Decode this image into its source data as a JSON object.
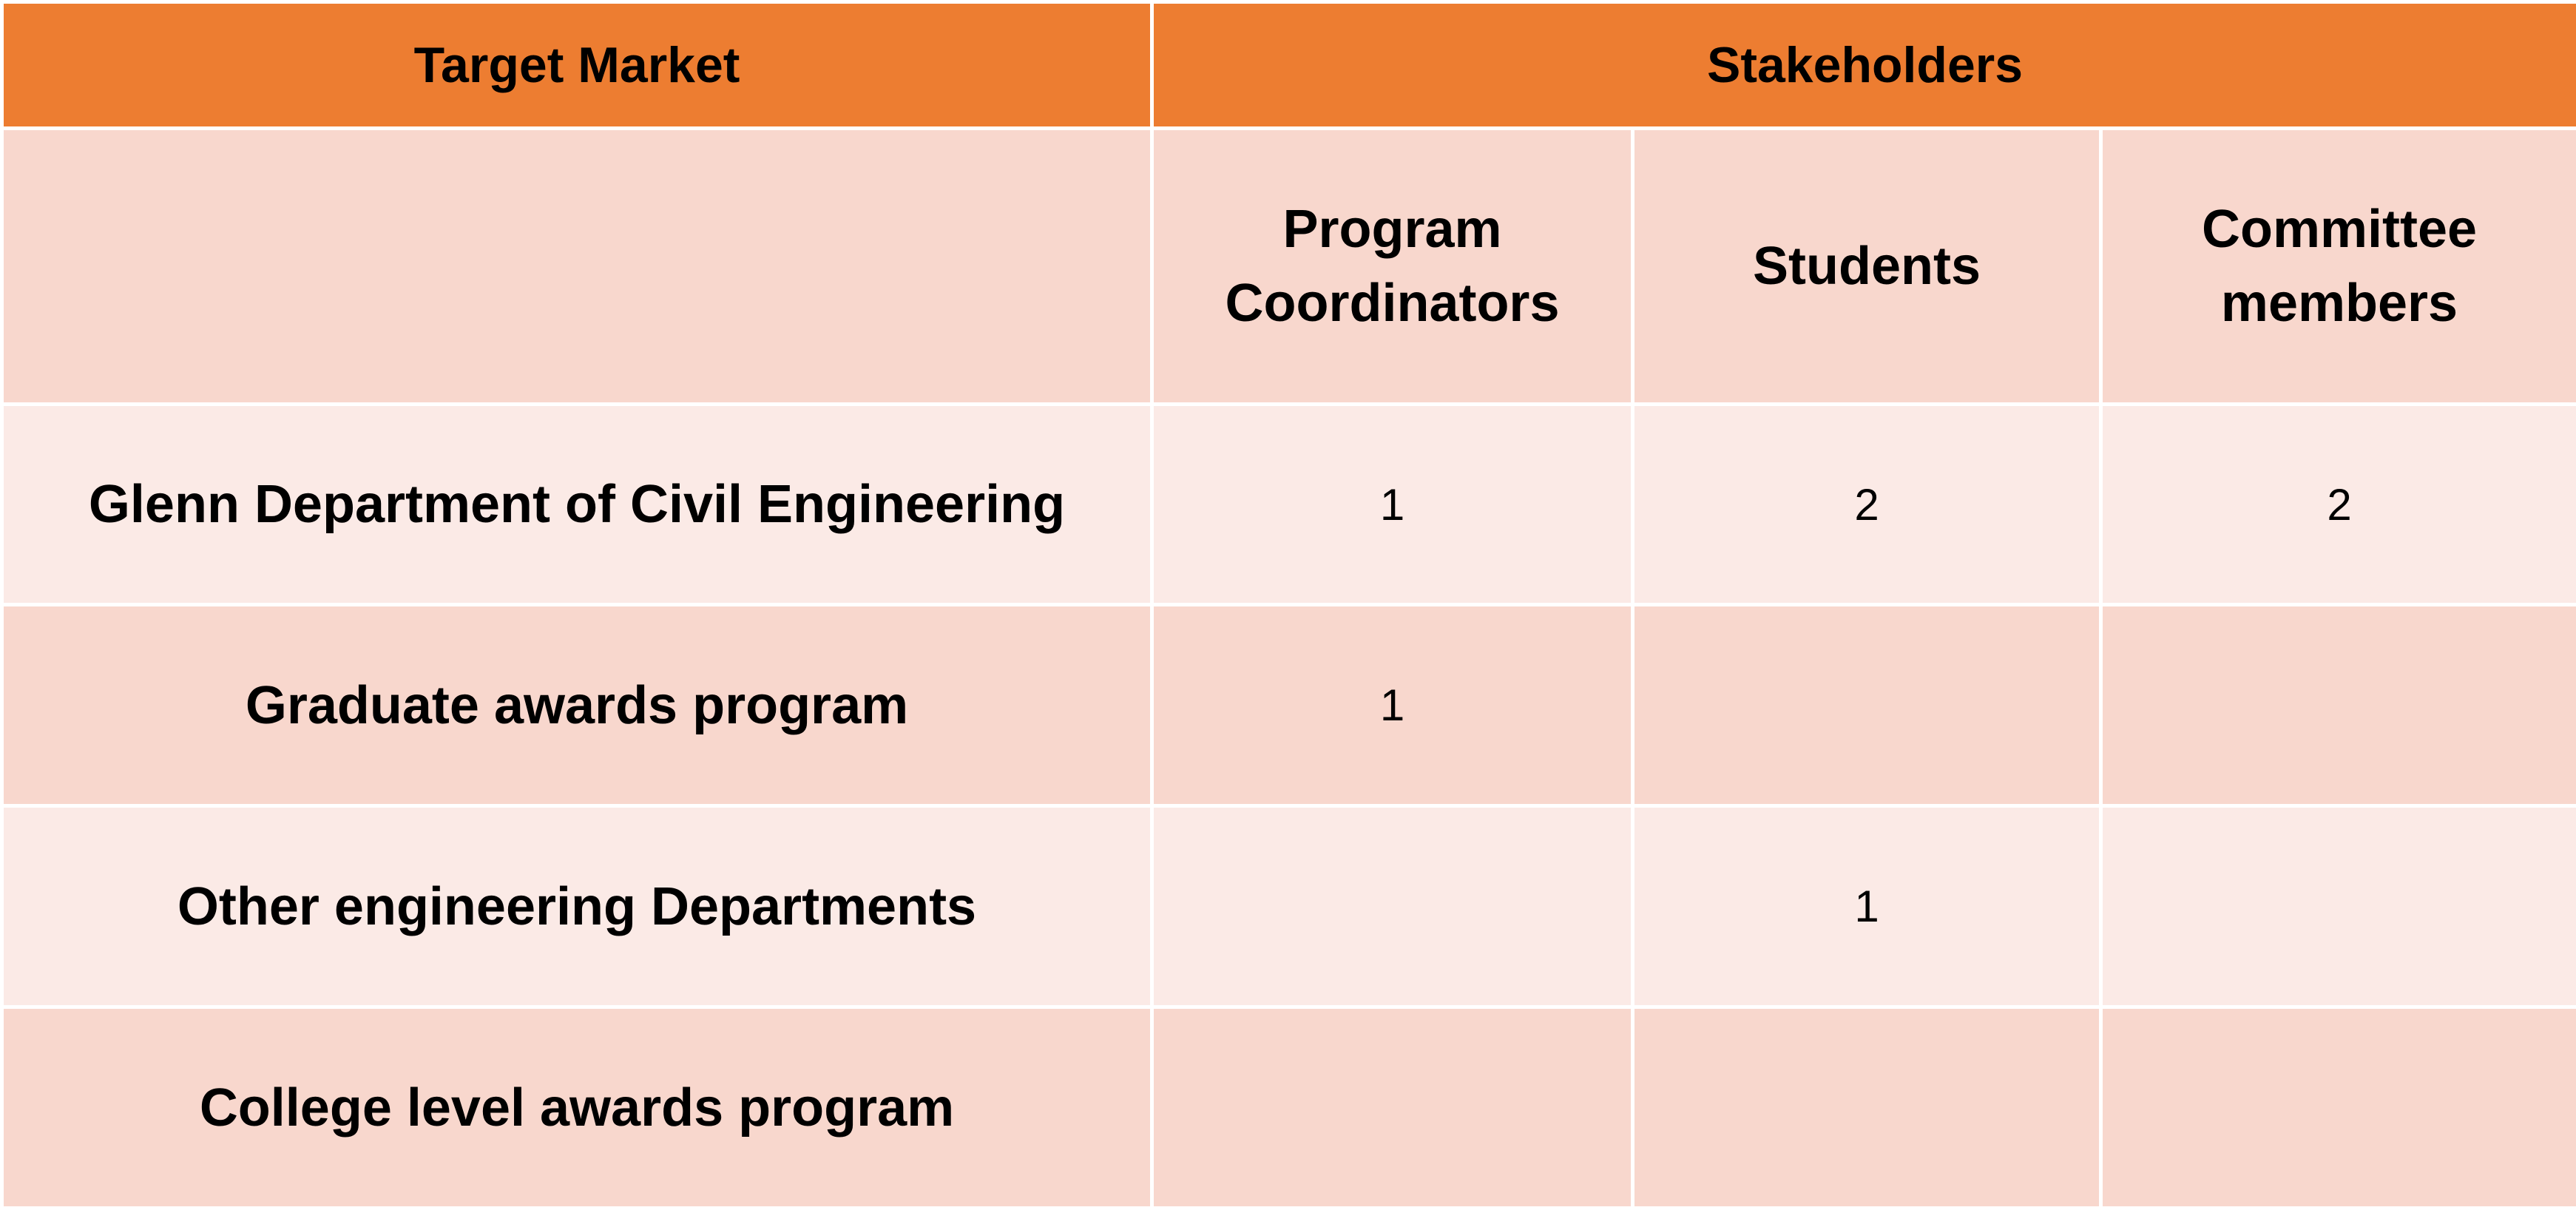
{
  "table": {
    "header": {
      "target_market": "Target Market",
      "stakeholders": "Stakeholders"
    },
    "columns": [
      "Program Coordinators",
      "Students",
      "Committee members"
    ],
    "rows": [
      {
        "label": "Glenn Department of Civil Engineering",
        "values": [
          "1",
          "2",
          "2"
        ]
      },
      {
        "label": "Graduate awards program",
        "values": [
          "1",
          "",
          ""
        ]
      },
      {
        "label": "Other engineering Departments",
        "values": [
          "",
          "1",
          ""
        ]
      },
      {
        "label": "College level awards program",
        "values": [
          "",
          "",
          ""
        ]
      }
    ]
  },
  "colors": {
    "header_bg": "#ed7d31",
    "header_text": "#ffffff",
    "row_dark": "#f8d7cd",
    "row_light": "#fbeae6"
  }
}
